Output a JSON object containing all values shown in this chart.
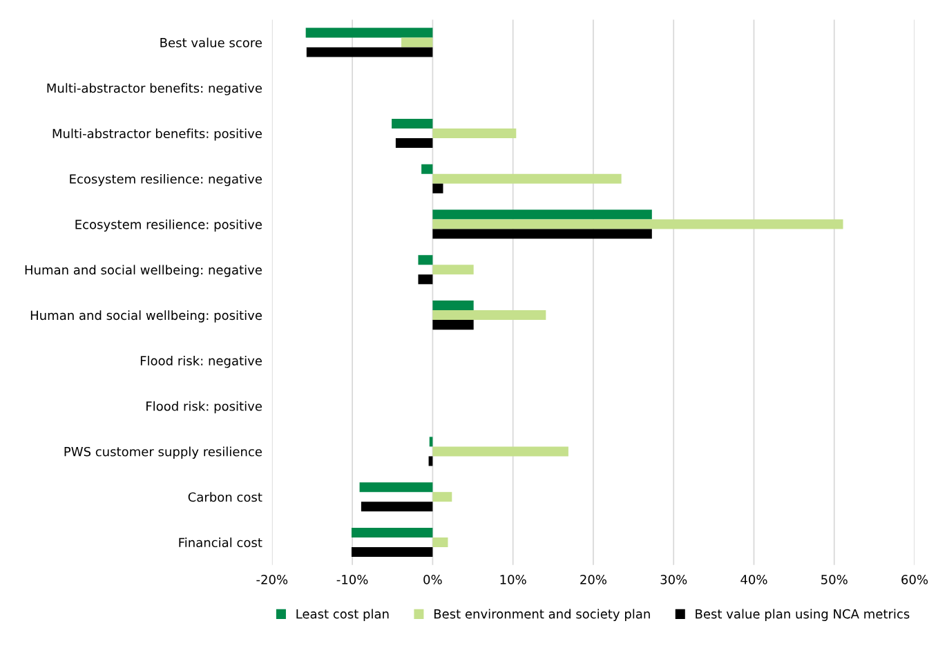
{
  "chart_data": {
    "type": "bar",
    "orientation": "horizontal",
    "categories": [
      "Best value score",
      "Multi-abstractor benefits: negative",
      "Multi-abstractor benefits: positive",
      "Ecosystem resilience: negative",
      "Ecosystem resilience: positive",
      "Human and social wellbeing: negative",
      "Human and social wellbeing: positive",
      "Flood risk: negative",
      "Flood risk: positive",
      "PWS customer supply resilience",
      "Carbon cost",
      "Financial cost"
    ],
    "series": [
      {
        "name": "Least cost plan",
        "color": "#00894a",
        "values": [
          -15.8,
          null,
          -5.1,
          -1.4,
          27.3,
          -1.8,
          5.1,
          null,
          null,
          -0.4,
          -9.1,
          -10.1
        ]
      },
      {
        "name": "Best environment and society plan",
        "color": "#c5e08c",
        "values": [
          -3.9,
          null,
          10.4,
          23.5,
          51.1,
          5.1,
          14.1,
          null,
          null,
          16.9,
          2.4,
          1.9
        ]
      },
      {
        "name": "Best value plan using NCA metrics",
        "color": "#000000",
        "values": [
          -15.7,
          null,
          -4.6,
          1.3,
          27.3,
          -1.8,
          5.1,
          null,
          null,
          -0.5,
          -8.9,
          -10.1
        ]
      }
    ],
    "xlim": [
      -20,
      60
    ],
    "xticks": [
      {
        "value": -20,
        "label": "-20%"
      },
      {
        "value": -10,
        "label": "-10%"
      },
      {
        "value": 0,
        "label": "0%"
      },
      {
        "value": 10,
        "label": "10%"
      },
      {
        "value": 20,
        "label": "20%"
      },
      {
        "value": 30,
        "label": "30%"
      },
      {
        "value": 40,
        "label": "40%"
      },
      {
        "value": 50,
        "label": "50%"
      },
      {
        "value": 60,
        "label": "60%"
      }
    ],
    "grid": "x",
    "legend": "bottom"
  }
}
